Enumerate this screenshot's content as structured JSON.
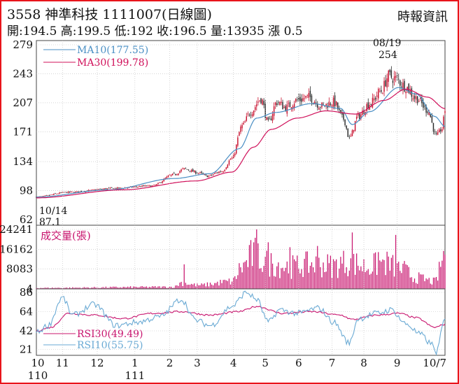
{
  "header": {
    "title": "3558 神準科技 1111007(日線圖)",
    "source": "時報資訊",
    "ohlc": "開:194.5 高:199.5 低:192 收:196.5 量:13935 漲 0.5"
  },
  "colors": {
    "frame": "#e8141b",
    "up": "#c8102e",
    "down": "#2a2a2a",
    "ma10": "#4a8fc4",
    "ma30": "#d0105a",
    "volume": "#c8146e",
    "rsi30": "#c8146e",
    "rsi10": "#6aaad4",
    "grid": "#bbbbbb"
  },
  "chart_data": [
    {
      "type": "candlestick",
      "panel": "price",
      "y_ticks": [
        62,
        98,
        134,
        171,
        207,
        243,
        279
      ],
      "ylim": [
        62,
        279
      ],
      "legend": [
        {
          "label": "MA10(177.55)",
          "color": "#4a8fc4"
        },
        {
          "label": "MA30(199.78)",
          "color": "#d0105a"
        }
      ],
      "annotations": [
        {
          "date_label": "10/14",
          "value_label": "87.1",
          "value": 87.1
        },
        {
          "date_label": "08/19",
          "value_label": "254",
          "value": 254
        }
      ],
      "close_keypoints": [
        {
          "d": 0,
          "v": 90
        },
        {
          "d": 22,
          "v": 96
        },
        {
          "d": 55,
          "v": 101
        },
        {
          "d": 80,
          "v": 104
        },
        {
          "d": 95,
          "v": 118
        },
        {
          "d": 102,
          "v": 125
        },
        {
          "d": 112,
          "v": 120
        },
        {
          "d": 118,
          "v": 116
        },
        {
          "d": 128,
          "v": 122
        },
        {
          "d": 135,
          "v": 138
        },
        {
          "d": 142,
          "v": 178
        },
        {
          "d": 148,
          "v": 196
        },
        {
          "d": 155,
          "v": 212
        },
        {
          "d": 160,
          "v": 182
        },
        {
          "d": 166,
          "v": 208
        },
        {
          "d": 172,
          "v": 201
        },
        {
          "d": 180,
          "v": 210
        },
        {
          "d": 188,
          "v": 214
        },
        {
          "d": 197,
          "v": 203
        },
        {
          "d": 205,
          "v": 208
        },
        {
          "d": 212,
          "v": 187
        },
        {
          "d": 216,
          "v": 163
        },
        {
          "d": 222,
          "v": 190
        },
        {
          "d": 230,
          "v": 206
        },
        {
          "d": 238,
          "v": 222
        },
        {
          "d": 243,
          "v": 240
        },
        {
          "d": 248,
          "v": 237
        },
        {
          "d": 254,
          "v": 228
        },
        {
          "d": 262,
          "v": 213
        },
        {
          "d": 270,
          "v": 198
        },
        {
          "d": 276,
          "v": 166
        },
        {
          "d": 280,
          "v": 175
        },
        {
          "d": 282,
          "v": 196.5
        }
      ],
      "ma10_keypoints": [
        {
          "d": 0,
          "v": 90
        },
        {
          "d": 50,
          "v": 99
        },
        {
          "d": 95,
          "v": 113
        },
        {
          "d": 120,
          "v": 119
        },
        {
          "d": 140,
          "v": 150
        },
        {
          "d": 152,
          "v": 188
        },
        {
          "d": 165,
          "v": 195
        },
        {
          "d": 190,
          "v": 206
        },
        {
          "d": 210,
          "v": 200
        },
        {
          "d": 218,
          "v": 180
        },
        {
          "d": 230,
          "v": 196
        },
        {
          "d": 250,
          "v": 226
        },
        {
          "d": 262,
          "v": 218
        },
        {
          "d": 275,
          "v": 190
        },
        {
          "d": 282,
          "v": 177.55
        }
      ],
      "ma30_keypoints": [
        {
          "d": 0,
          "v": 89
        },
        {
          "d": 60,
          "v": 99
        },
        {
          "d": 110,
          "v": 110
        },
        {
          "d": 135,
          "v": 121
        },
        {
          "d": 150,
          "v": 152
        },
        {
          "d": 162,
          "v": 174
        },
        {
          "d": 180,
          "v": 188
        },
        {
          "d": 200,
          "v": 197
        },
        {
          "d": 220,
          "v": 193
        },
        {
          "d": 240,
          "v": 210
        },
        {
          "d": 255,
          "v": 224
        },
        {
          "d": 270,
          "v": 214
        },
        {
          "d": 282,
          "v": 199.78
        }
      ]
    },
    {
      "type": "bar",
      "panel": "volume",
      "title": "成交量(張)",
      "y_ticks": [
        4,
        8083,
        16162,
        24241
      ],
      "ylim": [
        0,
        24241
      ],
      "last_value": 13935,
      "volume_keypoints": [
        {
          "d": 0,
          "v": 400
        },
        {
          "d": 95,
          "v": 800
        },
        {
          "d": 100,
          "v": 2500
        },
        {
          "d": 112,
          "v": 1500
        },
        {
          "d": 135,
          "v": 3000
        },
        {
          "d": 142,
          "v": 9000
        },
        {
          "d": 150,
          "v": 14000
        },
        {
          "d": 160,
          "v": 10500
        },
        {
          "d": 175,
          "v": 9000
        },
        {
          "d": 190,
          "v": 10000
        },
        {
          "d": 205,
          "v": 9500
        },
        {
          "d": 215,
          "v": 11000
        },
        {
          "d": 228,
          "v": 9000
        },
        {
          "d": 240,
          "v": 10500
        },
        {
          "d": 252,
          "v": 8000
        },
        {
          "d": 262,
          "v": 4500
        },
        {
          "d": 275,
          "v": 3000
        },
        {
          "d": 282,
          "v": 13935
        }
      ],
      "volume_peaks": [
        {
          "d": 102,
          "v": 10000
        },
        {
          "d": 152,
          "v": 24241
        },
        {
          "d": 160,
          "v": 19000
        },
        {
          "d": 175,
          "v": 17000
        },
        {
          "d": 194,
          "v": 17500
        },
        {
          "d": 218,
          "v": 23000
        },
        {
          "d": 236,
          "v": 15000
        },
        {
          "d": 248,
          "v": 22000
        }
      ]
    },
    {
      "type": "line",
      "panel": "rsi",
      "y_ticks": [
        21,
        42,
        64,
        86
      ],
      "ylim": [
        14,
        90
      ],
      "legend": [
        {
          "label": "RSI30(49.49)",
          "color": "#c8146e"
        },
        {
          "label": "RSI10(55.75)",
          "color": "#6aaad4"
        }
      ],
      "rsi30_keypoints": [
        {
          "d": 0,
          "v": 42
        },
        {
          "d": 10,
          "v": 46
        },
        {
          "d": 22,
          "v": 62
        },
        {
          "d": 40,
          "v": 60
        },
        {
          "d": 60,
          "v": 56
        },
        {
          "d": 80,
          "v": 62
        },
        {
          "d": 100,
          "v": 64
        },
        {
          "d": 120,
          "v": 60
        },
        {
          "d": 140,
          "v": 64
        },
        {
          "d": 152,
          "v": 70
        },
        {
          "d": 170,
          "v": 62
        },
        {
          "d": 190,
          "v": 64
        },
        {
          "d": 210,
          "v": 60
        },
        {
          "d": 218,
          "v": 55
        },
        {
          "d": 235,
          "v": 60
        },
        {
          "d": 250,
          "v": 62
        },
        {
          "d": 262,
          "v": 57
        },
        {
          "d": 275,
          "v": 46
        },
        {
          "d": 282,
          "v": 49.49
        }
      ],
      "rsi10_keypoints": [
        {
          "d": 0,
          "v": 40
        },
        {
          "d": 8,
          "v": 48
        },
        {
          "d": 18,
          "v": 80
        },
        {
          "d": 25,
          "v": 60
        },
        {
          "d": 40,
          "v": 72
        },
        {
          "d": 55,
          "v": 48
        },
        {
          "d": 70,
          "v": 52
        },
        {
          "d": 85,
          "v": 58
        },
        {
          "d": 100,
          "v": 78
        },
        {
          "d": 110,
          "v": 54
        },
        {
          "d": 120,
          "v": 48
        },
        {
          "d": 135,
          "v": 70
        },
        {
          "d": 145,
          "v": 86
        },
        {
          "d": 152,
          "v": 78
        },
        {
          "d": 160,
          "v": 52
        },
        {
          "d": 168,
          "v": 66
        },
        {
          "d": 180,
          "v": 62
        },
        {
          "d": 195,
          "v": 68
        },
        {
          "d": 205,
          "v": 52
        },
        {
          "d": 216,
          "v": 28
        },
        {
          "d": 222,
          "v": 56
        },
        {
          "d": 235,
          "v": 62
        },
        {
          "d": 245,
          "v": 66
        },
        {
          "d": 255,
          "v": 50
        },
        {
          "d": 265,
          "v": 38
        },
        {
          "d": 272,
          "v": 28
        },
        {
          "d": 276,
          "v": 18
        },
        {
          "d": 282,
          "v": 55.75
        }
      ]
    }
  ],
  "x_axis": {
    "total_days": 282,
    "ticks": [
      {
        "label": "10",
        "sub": "110",
        "d": 0
      },
      {
        "label": "11",
        "d": 18
      },
      {
        "label": "12",
        "d": 42
      },
      {
        "label": "1",
        "sub": "111",
        "d": 68
      },
      {
        "label": "2",
        "d": 92
      },
      {
        "label": "3",
        "d": 111
      },
      {
        "label": "4",
        "d": 136
      },
      {
        "label": "5",
        "d": 158
      },
      {
        "label": "6",
        "d": 181
      },
      {
        "label": "7",
        "d": 204
      },
      {
        "label": "8",
        "d": 226
      },
      {
        "label": "9",
        "d": 249
      },
      {
        "label": "10/7",
        "d": 282
      }
    ]
  }
}
